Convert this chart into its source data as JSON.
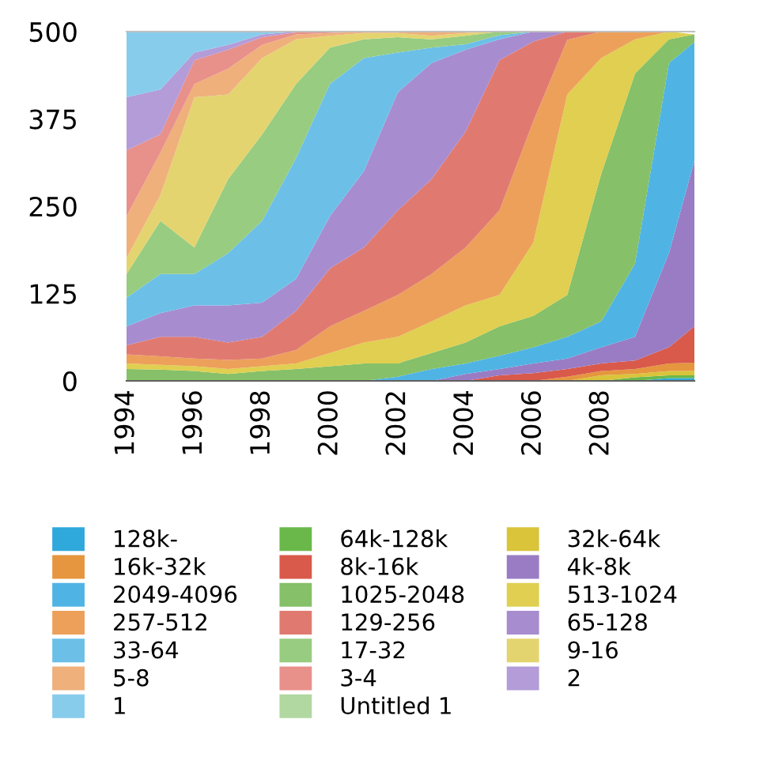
{
  "chart_data": {
    "type": "area",
    "stacked": true,
    "legend": "bottom",
    "grid": false,
    "x": [
      1994,
      1995,
      1996,
      1997,
      1998,
      1999,
      2000,
      2001,
      2002,
      2003,
      2004,
      2005,
      2006,
      2007,
      2008,
      2009,
      2010,
      2010.75
    ],
    "xlim": [
      1994,
      2010.75
    ],
    "xticks": [
      1994,
      1996,
      1998,
      2000,
      2002,
      2004,
      2006,
      2008
    ],
    "ylim": [
      0,
      500
    ],
    "yticks": [
      0,
      125,
      250,
      375,
      500
    ],
    "series": [
      {
        "name": "128k-",
        "color": "#2fa8dc",
        "values": [
          0,
          0,
          0,
          0,
          0,
          0,
          0,
          0,
          0,
          0,
          0,
          0,
          0,
          0,
          0,
          0,
          4,
          4
        ]
      },
      {
        "name": "64k-128k",
        "color": "#6ab84a",
        "values": [
          0,
          0,
          0,
          0,
          0,
          0,
          0,
          0,
          0,
          0,
          0,
          0,
          0,
          0,
          0,
          5,
          4,
          4
        ]
      },
      {
        "name": "32k-64k",
        "color": "#d9c43a",
        "values": [
          0,
          0,
          0,
          0,
          0,
          0,
          0,
          0,
          0,
          0,
          0,
          0,
          0,
          0,
          8,
          5,
          6,
          6
        ]
      },
      {
        "name": "16k-32k",
        "color": "#e5963e",
        "values": [
          0,
          0,
          0,
          0,
          0,
          0,
          0,
          0,
          0,
          0,
          0,
          0,
          0,
          6,
          6,
          7,
          11,
          12
        ]
      },
      {
        "name": "8k-16k",
        "color": "#d9594a",
        "values": [
          0,
          0,
          0,
          0,
          0,
          0,
          0,
          0,
          0,
          0,
          0,
          8,
          11,
          11,
          11,
          12,
          23,
          52
        ]
      },
      {
        "name": "4k-8k",
        "color": "#9a7cc4",
        "values": [
          0,
          0,
          0,
          0,
          0,
          0,
          0,
          0,
          0,
          0,
          10,
          9,
          14,
          15,
          23,
          34,
          135,
          237
        ]
      },
      {
        "name": "2049-4096",
        "color": "#4fb4e4",
        "values": [
          0,
          0,
          0,
          0,
          0,
          0,
          0,
          0,
          6,
          17,
          15,
          19,
          23,
          31,
          37,
          105,
          272,
          170
        ]
      },
      {
        "name": "1025-2048",
        "color": "#86c068",
        "values": [
          17,
          16,
          14,
          10,
          14,
          17,
          21,
          25,
          19,
          23,
          30,
          42,
          45,
          60,
          211,
          272,
          34,
          11
        ]
      },
      {
        "name": "513-1024",
        "color": "#e0cf50",
        "values": [
          8,
          7,
          7,
          7,
          7,
          8,
          19,
          30,
          38,
          45,
          53,
          45,
          105,
          287,
          166,
          49,
          11,
          0
        ]
      },
      {
        "name": "257-512",
        "color": "#eda05a",
        "values": [
          13,
          12,
          11,
          13,
          11,
          19,
          38,
          45,
          60,
          68,
          83,
          121,
          174,
          78,
          38,
          11,
          0,
          0
        ]
      },
      {
        "name": "129-256",
        "color": "#e07a70",
        "values": [
          13,
          28,
          31,
          25,
          31,
          56,
          83,
          91,
          121,
          136,
          166,
          215,
          114,
          12,
          0,
          0,
          0,
          0
        ]
      },
      {
        "name": "65-128",
        "color": "#a88cd0",
        "values": [
          27,
          34,
          45,
          53,
          49,
          46,
          75,
          109,
          169,
          166,
          117,
          30,
          14,
          0,
          0,
          0,
          0,
          0
        ]
      },
      {
        "name": "33-64",
        "color": "#6cc0e8",
        "values": [
          41,
          56,
          45,
          75,
          117,
          173,
          189,
          162,
          57,
          22,
          8,
          6,
          0,
          0,
          0,
          0,
          0,
          0
        ]
      },
      {
        "name": "17-32",
        "color": "#98cc80",
        "values": [
          34,
          76,
          38,
          106,
          124,
          106,
          52,
          27,
          22,
          12,
          12,
          5,
          0,
          0,
          0,
          0,
          0,
          0
        ]
      },
      {
        "name": "9-16",
        "color": "#e4d470",
        "values": [
          23,
          37,
          215,
          121,
          109,
          64,
          17,
          9,
          6,
          5,
          4,
          0,
          0,
          0,
          0,
          0,
          0,
          0
        ]
      },
      {
        "name": "5-8",
        "color": "#efb07c",
        "values": [
          60,
          61,
          19,
          37,
          19,
          7,
          4,
          2,
          2,
          6,
          2,
          0,
          0,
          0,
          0,
          0,
          0,
          0
        ]
      },
      {
        "name": "3-4",
        "color": "#e8908a",
        "values": [
          94,
          26,
          34,
          27,
          11,
          3,
          2,
          0,
          0,
          0,
          0,
          0,
          0,
          0,
          0,
          0,
          0,
          0
        ]
      },
      {
        "name": "2",
        "color": "#b49cd8",
        "values": [
          76,
          64,
          11,
          7,
          4,
          1,
          0,
          0,
          0,
          0,
          0,
          0,
          0,
          0,
          0,
          0,
          0,
          0
        ]
      },
      {
        "name": "1",
        "color": "#88ccec",
        "values": [
          94,
          83,
          30,
          19,
          4,
          0,
          0,
          0,
          0,
          0,
          0,
          0,
          0,
          0,
          0,
          0,
          0,
          0
        ]
      },
      {
        "name": "Untitled 1",
        "color": "#b0d8a0",
        "values": [
          null,
          null,
          null,
          null,
          null,
          null,
          null,
          null,
          null,
          null,
          null,
          null,
          null,
          null,
          null,
          null,
          null,
          null
        ]
      }
    ]
  }
}
